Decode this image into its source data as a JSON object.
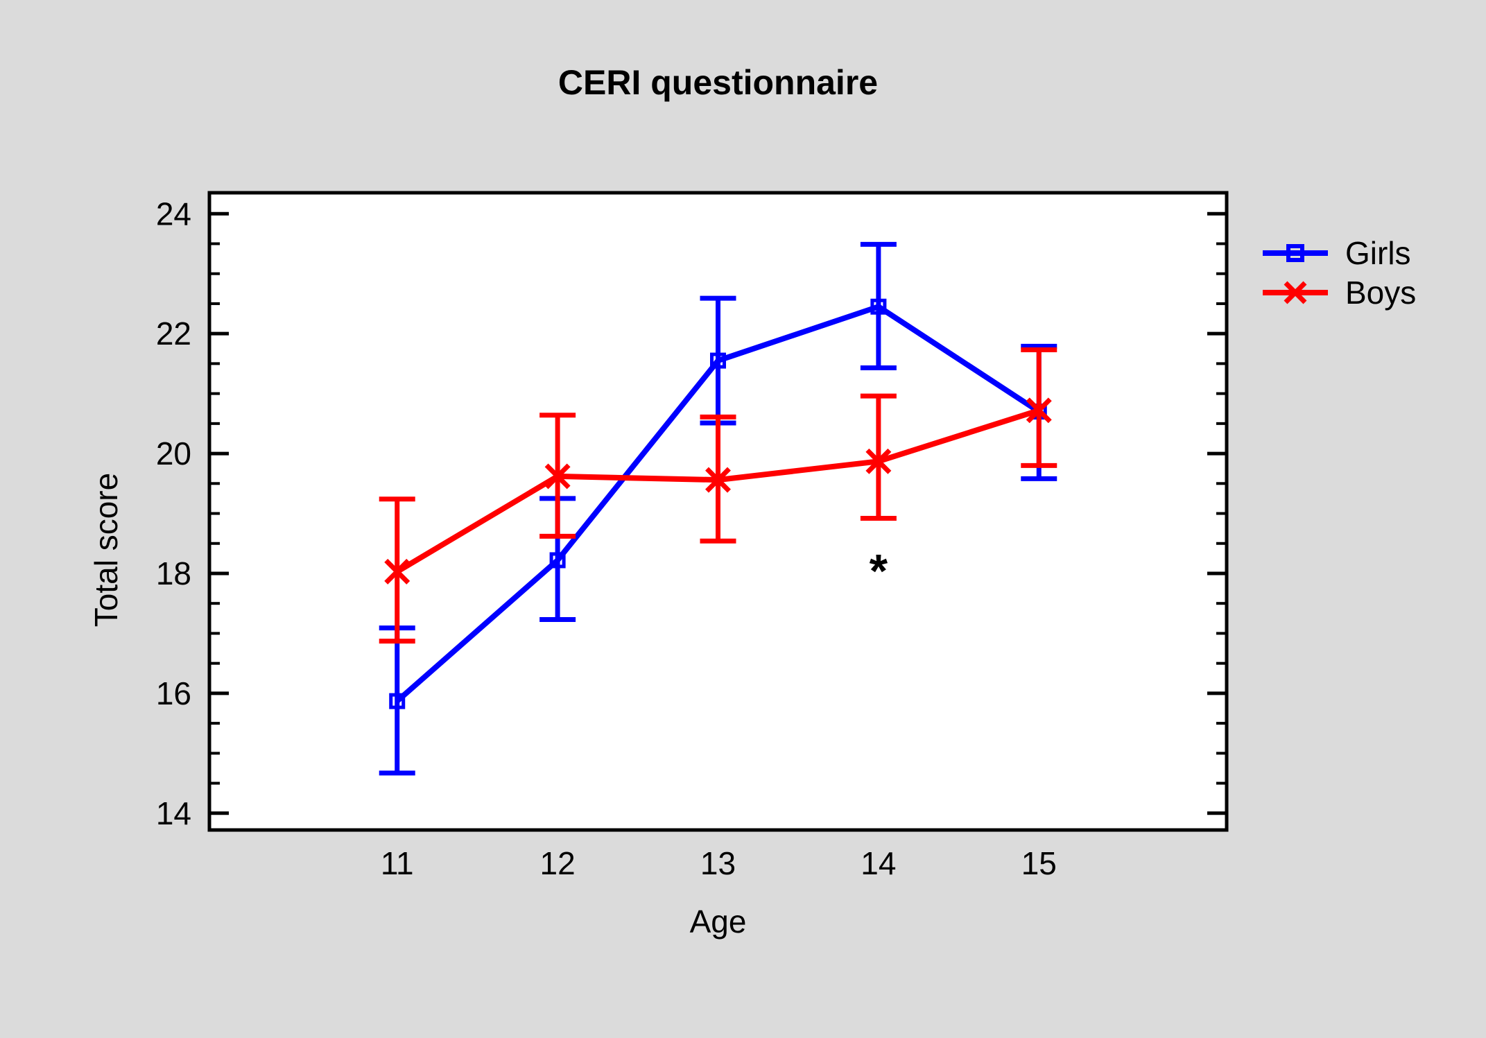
{
  "title": "CERI questionnaire",
  "axes": {
    "x": {
      "label": "Age"
    },
    "y": {
      "label": "Total score"
    }
  },
  "legend": {
    "items": [
      {
        "name": "Girls",
        "color": "#0000ff",
        "marker": "open-square"
      },
      {
        "name": "Boys",
        "color": "#ff0000",
        "marker": "x"
      }
    ]
  },
  "colors": {
    "background": "#dbdbdb",
    "plot_background": "#ffffff",
    "frame": "#000000",
    "girls": "#0000ff",
    "boys": "#ff0000",
    "annotation": "#000000"
  },
  "chart_data": {
    "type": "line",
    "title": "CERI questionnaire",
    "xlabel": "Age",
    "ylabel": "Total score",
    "x": [
      11,
      12,
      13,
      14,
      15
    ],
    "xlim": [
      9.83,
      16.17
    ],
    "ylim": [
      13.72,
      24.35
    ],
    "yticks_major": [
      14,
      16,
      18,
      20,
      22,
      24
    ],
    "ytick_minor_step": 0.5,
    "grid": false,
    "legend_position": "outside-right-top",
    "error_bars": true,
    "series": [
      {
        "name": "Girls",
        "color": "#0000ff",
        "marker": "open-square",
        "values": [
          15.87,
          18.22,
          21.55,
          22.45,
          20.7
        ],
        "err_low": [
          14.67,
          17.23,
          20.51,
          21.43,
          19.58
        ],
        "err_high": [
          17.09,
          19.25,
          22.59,
          23.49,
          21.79
        ]
      },
      {
        "name": "Boys",
        "color": "#ff0000",
        "marker": "x",
        "values": [
          18.03,
          19.62,
          19.56,
          19.87,
          20.72
        ],
        "err_low": [
          16.87,
          18.62,
          18.54,
          18.92,
          19.8
        ],
        "err_high": [
          19.24,
          20.64,
          20.61,
          20.96,
          21.73
        ]
      }
    ],
    "annotations": [
      {
        "text": "*",
        "x": 14,
        "y": 18.17
      }
    ]
  }
}
